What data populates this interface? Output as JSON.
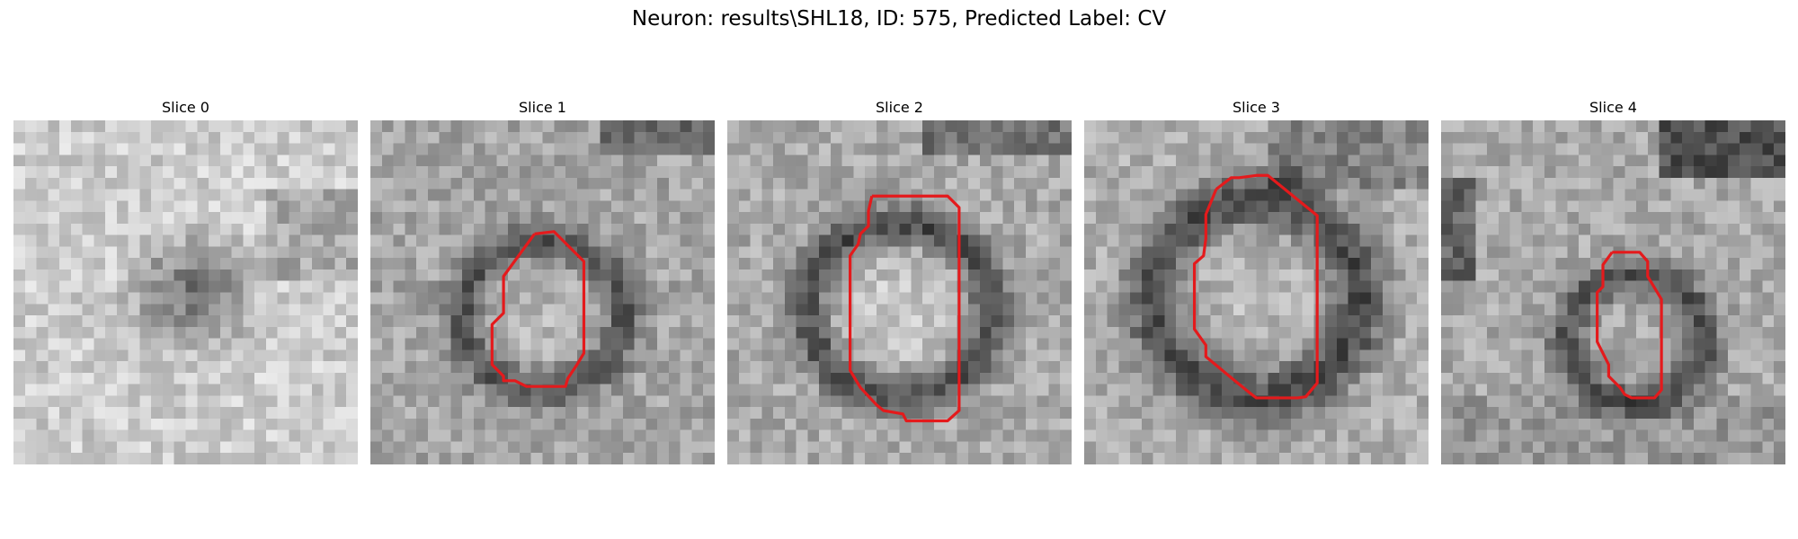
{
  "figure": {
    "title": "Neuron: results\\SHL18, ID: 575, Predicted Label: CV"
  },
  "panels": [
    {
      "title": "Slice 0",
      "image": "grayscale microscopy patch, no outline",
      "outline_color": "#e41a1c"
    },
    {
      "title": "Slice 1",
      "image": "grayscale microscopy patch with red cell outline",
      "outline_color": "#e41a1c"
    },
    {
      "title": "Slice 2",
      "image": "grayscale microscopy patch with red cell outline",
      "outline_color": "#e41a1c"
    },
    {
      "title": "Slice 3",
      "image": "grayscale microscopy patch with red cell outline",
      "outline_color": "#e41a1c"
    },
    {
      "title": "Slice 4",
      "image": "grayscale microscopy patch with red cell outline",
      "outline_color": "#e41a1c"
    }
  ]
}
